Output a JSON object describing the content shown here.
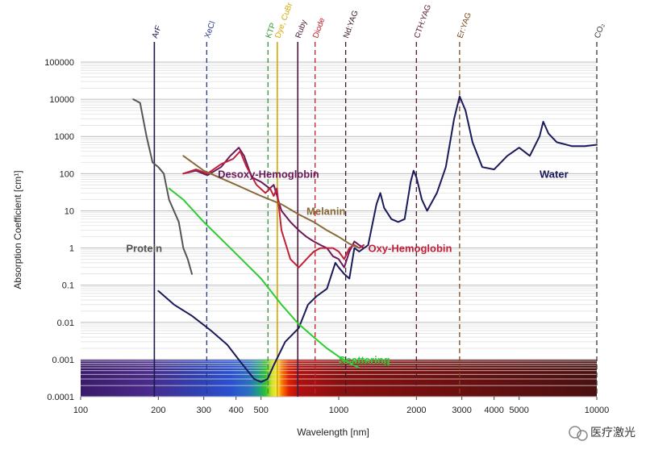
{
  "chart_data": {
    "type": "line",
    "title": "",
    "xlabel": "Wavelength [nm]",
    "ylabel": "Absorption Coefficient [cm¹]",
    "xscale": "log",
    "yscale": "log",
    "xlim": [
      100,
      10000
    ],
    "ylim": [
      0.0001,
      100000
    ],
    "x_tick_labels": [
      "100",
      "200",
      "300",
      "400",
      "500",
      "1000",
      "2000",
      "3000",
      "4000",
      "5000",
      "10000"
    ],
    "x_ticks": [
      100,
      200,
      300,
      400,
      500,
      1000,
      2000,
      3000,
      4000,
      5000,
      10000
    ],
    "y_tick_labels": [
      "100000",
      "10000",
      "1000",
      "100",
      "10",
      "1",
      "0.1",
      "0.01",
      "0.001",
      "0.0001"
    ],
    "y_ticks": [
      100000,
      10000,
      1000,
      100,
      10,
      1,
      0.1,
      0.01,
      0.001,
      0.0001
    ],
    "grid": true,
    "spectrum_band": {
      "from": 0.0001,
      "to": 0.001
    },
    "lasers": [
      {
        "name": "ArF",
        "wavelength": 193,
        "color": "#1a1a4a",
        "style": "solid"
      },
      {
        "name": "XeCl",
        "wavelength": 308,
        "color": "#2b3a8a",
        "style": "dashed"
      },
      {
        "name": "KTP",
        "wavelength": 532,
        "color": "#2e9a2e",
        "style": "dashed"
      },
      {
        "name": "Dye, CuBr",
        "wavelength": 578,
        "color": "#d4a800",
        "style": "solid"
      },
      {
        "name": "Ruby",
        "wavelength": 694,
        "color": "#4a1a3a",
        "style": "solid"
      },
      {
        "name": "Diode",
        "wavelength": 810,
        "color": "#c0202a",
        "style": "dashed"
      },
      {
        "name": "Nd:YAG",
        "wavelength": 1064,
        "color": "#3a1a2a",
        "style": "dashed"
      },
      {
        "name": "CTH:YAG",
        "wavelength": 2000,
        "color": "#5a1a2a",
        "style": "dashed"
      },
      {
        "name": "Er:YAG",
        "wavelength": 2940,
        "color": "#7a4a1a",
        "style": "dashed"
      },
      {
        "name": "CO₂",
        "wavelength": 10600,
        "color": "#3a3a3a",
        "style": "dashed"
      }
    ],
    "series": [
      {
        "name": "Water",
        "color": "#1a1a5a",
        "points": [
          [
            200,
            0.07
          ],
          [
            230,
            0.03
          ],
          [
            270,
            0.015
          ],
          [
            320,
            0.006
          ],
          [
            370,
            0.0025
          ],
          [
            420,
            0.0008
          ],
          [
            470,
            0.0003
          ],
          [
            500,
            0.00025
          ],
          [
            530,
            0.0003
          ],
          [
            560,
            0.0007
          ],
          [
            620,
            0.003
          ],
          [
            700,
            0.007
          ],
          [
            760,
            0.03
          ],
          [
            820,
            0.05
          ],
          [
            900,
            0.08
          ],
          [
            970,
            0.4
          ],
          [
            1000,
            0.3
          ],
          [
            1050,
            0.2
          ],
          [
            1100,
            0.15
          ],
          [
            1150,
            1.0
          ],
          [
            1200,
            0.8
          ],
          [
            1300,
            1.2
          ],
          [
            1400,
            15
          ],
          [
            1450,
            30
          ],
          [
            1500,
            12
          ],
          [
            1600,
            6
          ],
          [
            1700,
            5
          ],
          [
            1800,
            6
          ],
          [
            1900,
            60
          ],
          [
            1950,
            120
          ],
          [
            2000,
            80
          ],
          [
            2100,
            20
          ],
          [
            2200,
            10
          ],
          [
            2400,
            30
          ],
          [
            2600,
            150
          ],
          [
            2800,
            3000
          ],
          [
            2940,
            12000
          ],
          [
            3100,
            5000
          ],
          [
            3300,
            700
          ],
          [
            3600,
            150
          ],
          [
            4000,
            130
          ],
          [
            4500,
            300
          ],
          [
            5000,
            500
          ],
          [
            5500,
            300
          ],
          [
            6000,
            1000
          ],
          [
            6200,
            2500
          ],
          [
            6500,
            1200
          ],
          [
            7000,
            700
          ],
          [
            8000,
            550
          ],
          [
            9000,
            550
          ],
          [
            10000,
            600
          ]
        ],
        "label_at": [
          6000,
          100
        ]
      },
      {
        "name": "Desoxy-Hemoglobin",
        "color": "#6a1a5a",
        "points": [
          [
            250,
            100
          ],
          [
            280,
            120
          ],
          [
            310,
            90
          ],
          [
            350,
            150
          ],
          [
            380,
            300
          ],
          [
            410,
            500
          ],
          [
            430,
            300
          ],
          [
            460,
            80
          ],
          [
            500,
            60
          ],
          [
            540,
            40
          ],
          [
            560,
            50
          ],
          [
            600,
            10
          ],
          [
            650,
            5
          ],
          [
            700,
            3
          ],
          [
            750,
            2
          ],
          [
            800,
            1.5
          ],
          [
            850,
            1.2
          ],
          [
            900,
            1
          ],
          [
            950,
            0.6
          ],
          [
            1000,
            0.5
          ],
          [
            1050,
            0.3
          ],
          [
            1100,
            0.8
          ],
          [
            1150,
            1.5
          ],
          [
            1200,
            1.2
          ],
          [
            1250,
            1
          ]
        ],
        "label_at": [
          340,
          100
        ]
      },
      {
        "name": "Oxy-Hemoglobin",
        "color": "#c0203a",
        "points": [
          [
            250,
            100
          ],
          [
            280,
            130
          ],
          [
            310,
            100
          ],
          [
            350,
            180
          ],
          [
            390,
            250
          ],
          [
            415,
            400
          ],
          [
            440,
            150
          ],
          [
            480,
            50
          ],
          [
            520,
            30
          ],
          [
            542,
            40
          ],
          [
            560,
            25
          ],
          [
            576,
            40
          ],
          [
            600,
            3
          ],
          [
            650,
            0.5
          ],
          [
            700,
            0.3
          ],
          [
            750,
            0.5
          ],
          [
            800,
            0.8
          ],
          [
            850,
            1
          ],
          [
            900,
            1
          ],
          [
            950,
            1
          ],
          [
            1000,
            0.8
          ],
          [
            1050,
            0.5
          ],
          [
            1100,
            1
          ],
          [
            1150,
            1.2
          ],
          [
            1200,
            1
          ],
          [
            1250,
            1.2
          ]
        ],
        "label_at": [
          1300,
          1
        ]
      },
      {
        "name": "Melanin",
        "color": "#8a6a3a",
        "points": [
          [
            250,
            300
          ],
          [
            300,
            120
          ],
          [
            400,
            50
          ],
          [
            500,
            25
          ],
          [
            600,
            15
          ],
          [
            700,
            8
          ],
          [
            800,
            5
          ],
          [
            900,
            3
          ],
          [
            1000,
            2
          ],
          [
            1100,
            1.3
          ],
          [
            1200,
            1
          ]
        ],
        "label_at": [
          750,
          10
        ]
      },
      {
        "name": "Protein",
        "color": "#555555",
        "points": [
          [
            160,
            10000
          ],
          [
            170,
            8000
          ],
          [
            180,
            1000
          ],
          [
            190,
            200
          ],
          [
            200,
            150
          ],
          [
            210,
            100
          ],
          [
            220,
            20
          ],
          [
            240,
            5
          ],
          [
            250,
            1
          ],
          [
            260,
            0.5
          ],
          [
            270,
            0.2
          ]
        ],
        "label_at": [
          150,
          1
        ]
      },
      {
        "name": "Scattering",
        "color": "#2ecc2e",
        "points": [
          [
            220,
            40
          ],
          [
            250,
            20
          ],
          [
            300,
            5
          ],
          [
            400,
            0.7
          ],
          [
            500,
            0.15
          ],
          [
            600,
            0.03
          ],
          [
            700,
            0.009
          ],
          [
            800,
            0.004
          ],
          [
            900,
            0.002
          ],
          [
            1000,
            0.0012
          ],
          [
            1100,
            0.0008
          ],
          [
            1200,
            0.0006
          ]
        ],
        "label_at": [
          1000,
          0.001
        ]
      }
    ]
  },
  "watermark": {
    "text": "医疗激光",
    "icon": "wechat-icon"
  }
}
